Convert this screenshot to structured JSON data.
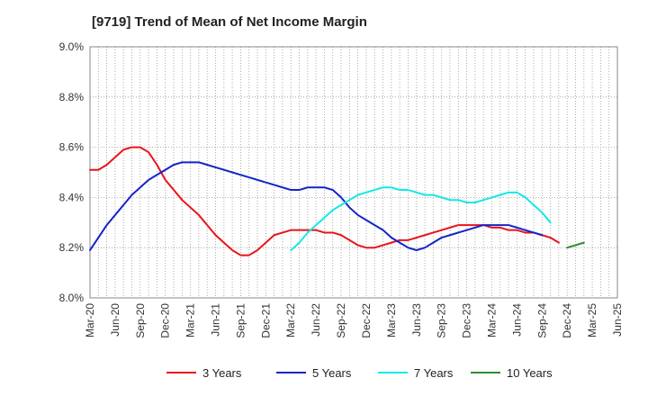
{
  "chart_data": {
    "type": "line",
    "title": "[9719]  Trend of Mean of Net Income Margin",
    "xlabel": "",
    "ylabel": "",
    "ylim": [
      8.0,
      9.0
    ],
    "y_ticks": [
      "9.0%",
      "8.8%",
      "8.6%",
      "8.4%",
      "8.2%",
      "8.0%"
    ],
    "y_tick_values": [
      9.0,
      8.8,
      8.6,
      8.4,
      8.2,
      8.0
    ],
    "x_ticks": [
      "Mar-20",
      "Jun-20",
      "Sep-20",
      "Dec-20",
      "Mar-21",
      "Jun-21",
      "Sep-21",
      "Dec-21",
      "Mar-22",
      "Jun-22",
      "Sep-22",
      "Dec-22",
      "Mar-23",
      "Jun-23",
      "Sep-23",
      "Dec-23",
      "Mar-24",
      "Jun-24",
      "Sep-24",
      "Dec-24",
      "Mar-25",
      "Jun-25"
    ],
    "grid": true,
    "legend_position": "bottom",
    "series": [
      {
        "name": "3 Years",
        "color": "#e8141b",
        "start": "Mar-20",
        "values": [
          8.51,
          8.51,
          8.53,
          8.56,
          8.59,
          8.6,
          8.6,
          8.58,
          8.53,
          8.47,
          8.43,
          8.39,
          8.36,
          8.33,
          8.29,
          8.25,
          8.22,
          8.19,
          8.17,
          8.17,
          8.19,
          8.22,
          8.25,
          8.26,
          8.27,
          8.27,
          8.27,
          8.27,
          8.26,
          8.26,
          8.25,
          8.23,
          8.21,
          8.2,
          8.2,
          8.21,
          8.22,
          8.23,
          8.23,
          8.24,
          8.25,
          8.26,
          8.27,
          8.28,
          8.29,
          8.29,
          8.29,
          8.29,
          8.28,
          8.28,
          8.27,
          8.27,
          8.26,
          8.26,
          8.25,
          8.24,
          8.22
        ]
      },
      {
        "name": "5 Years",
        "color": "#1425c8",
        "start": "Mar-20",
        "values": [
          8.19,
          8.24,
          8.29,
          8.33,
          8.37,
          8.41,
          8.44,
          8.47,
          8.49,
          8.51,
          8.53,
          8.54,
          8.54,
          8.54,
          8.53,
          8.52,
          8.51,
          8.5,
          8.49,
          8.48,
          8.47,
          8.46,
          8.45,
          8.44,
          8.43,
          8.43,
          8.44,
          8.44,
          8.44,
          8.43,
          8.4,
          8.36,
          8.33,
          8.31,
          8.29,
          8.27,
          8.24,
          8.22,
          8.2,
          8.19,
          8.2,
          8.22,
          8.24,
          8.25,
          8.26,
          8.27,
          8.28,
          8.29,
          8.29,
          8.29,
          8.29,
          8.28,
          8.27,
          8.26,
          8.25
        ]
      },
      {
        "name": "7 Years",
        "color": "#14e8e8",
        "start": "Mar-22",
        "values": [
          8.19,
          8.22,
          8.26,
          8.29,
          8.32,
          8.35,
          8.37,
          8.39,
          8.41,
          8.42,
          8.43,
          8.44,
          8.44,
          8.43,
          8.43,
          8.42,
          8.41,
          8.41,
          8.4,
          8.39,
          8.39,
          8.38,
          8.38,
          8.39,
          8.4,
          8.41,
          8.42,
          8.42,
          8.4,
          8.37,
          8.34,
          8.3
        ]
      },
      {
        "name": "10 Years",
        "color": "#2e8b2e",
        "start": "Dec-24",
        "values": [
          8.2,
          8.21,
          8.22
        ]
      }
    ]
  }
}
